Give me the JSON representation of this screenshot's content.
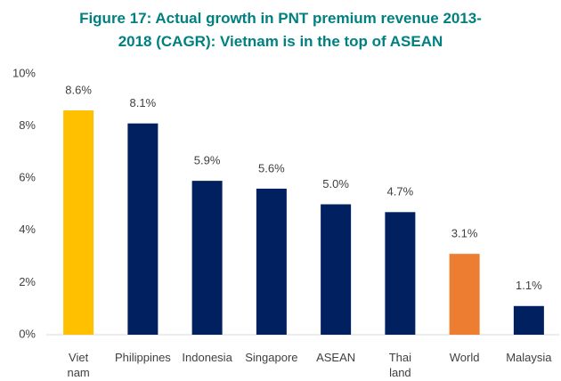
{
  "chart_data": {
    "type": "bar",
    "title": "Figure 17: Actual growth in PNT premium revenue 2013-\n2018 (CAGR): Vietnam is in the top of ASEAN",
    "categories": [
      "Viet\nnam",
      "Philippines",
      "Indonesia",
      "Singapore",
      "ASEAN",
      "Thai\nland",
      "World",
      "Malaysia"
    ],
    "values": [
      8.6,
      8.1,
      5.9,
      5.6,
      5.0,
      4.7,
      3.1,
      1.1
    ],
    "value_labels": [
      "8.6%",
      "8.1%",
      "5.9%",
      "5.6%",
      "5.0%",
      "4.7%",
      "3.1%",
      "1.1%"
    ],
    "colors": [
      "#ffc000",
      "#002060",
      "#002060",
      "#002060",
      "#002060",
      "#002060",
      "#ed7d31",
      "#002060"
    ],
    "ylim": [
      0,
      10
    ],
    "yticks": [
      {
        "value": 0,
        "label": "0%"
      },
      {
        "value": 2,
        "label": "2%"
      },
      {
        "value": 4,
        "label": "4%"
      },
      {
        "value": 6,
        "label": "6%"
      },
      {
        "value": 8,
        "label": "8%"
      },
      {
        "value": 10,
        "label": "10%"
      }
    ],
    "grid": false
  }
}
